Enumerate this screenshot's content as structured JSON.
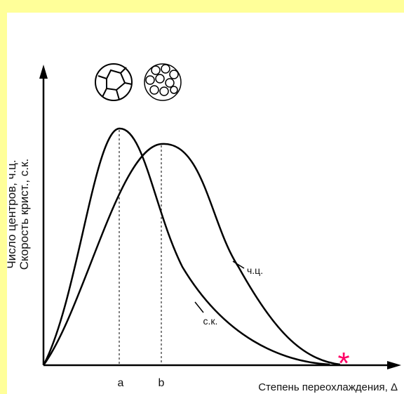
{
  "axes": {
    "y_label_lines": [
      "Число центров, ч.ц.",
      "Скорость крист., с.к."
    ],
    "x_label": "Степень переохлаждения, Δ"
  },
  "curves": [
    {
      "label": "ч.ц."
    },
    {
      "label": "с.к."
    }
  ],
  "ticks": [
    "a",
    "b"
  ],
  "marker": "*"
}
